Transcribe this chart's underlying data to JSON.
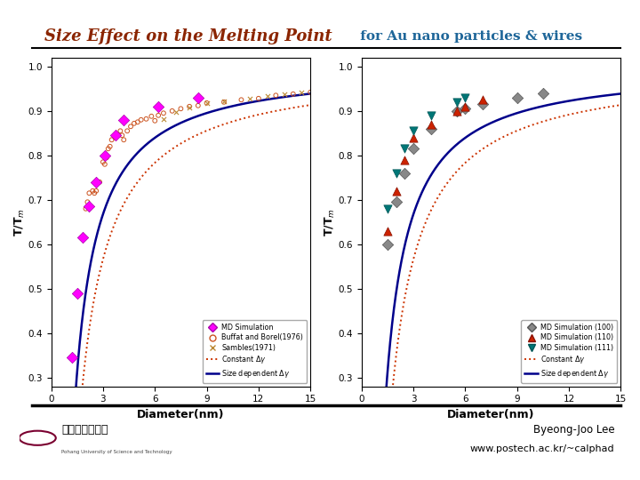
{
  "title_part1": "Size Effect on the Melting Point",
  "title_part2": " for Au nano particles & wires",
  "title_color1": "#8B2500",
  "title_color2": "#1E6699",
  "title_fontsize": 13,
  "title_fontsize2": 11,
  "bg_color": "#ffffff",
  "byeong_text": "Byeong-Joo Lee",
  "url_text": "www.postech.ac.kr/~calphad",
  "left_plot": {
    "xlabel": "Diameter(nm)",
    "ylabel": "T/T$_m$",
    "xlim": [
      0,
      15
    ],
    "ylim": [
      0.28,
      1.02
    ],
    "yticks": [
      0.3,
      0.4,
      0.5,
      0.6,
      0.7,
      0.8,
      0.9,
      1.0
    ],
    "xticks": [
      0,
      3,
      6,
      9,
      12,
      15
    ],
    "md_sim_x": [
      1.2,
      1.5,
      1.8,
      2.2,
      2.6,
      3.1,
      3.7,
      4.2,
      6.2,
      8.5
    ],
    "md_sim_y": [
      0.345,
      0.49,
      0.615,
      0.685,
      0.74,
      0.8,
      0.845,
      0.88,
      0.91,
      0.93
    ],
    "buffat_x": [
      2.0,
      2.1,
      2.2,
      2.4,
      2.5,
      2.6,
      2.8,
      3.0,
      3.1,
      3.2,
      3.3,
      3.4,
      3.5,
      3.7,
      3.8,
      4.0,
      4.1,
      4.2,
      4.4,
      4.6,
      4.8,
      5.0,
      5.2,
      5.5,
      5.8,
      6.0,
      6.2,
      6.5,
      7.0,
      7.5,
      8.0,
      8.5,
      9.0,
      10.0,
      11.0,
      12.0,
      13.0,
      14.0,
      15.0
    ],
    "buffat_y": [
      0.68,
      0.695,
      0.715,
      0.72,
      0.715,
      0.72,
      0.74,
      0.785,
      0.78,
      0.795,
      0.815,
      0.82,
      0.835,
      0.84,
      0.845,
      0.855,
      0.845,
      0.835,
      0.855,
      0.865,
      0.872,
      0.875,
      0.88,
      0.882,
      0.888,
      0.878,
      0.89,
      0.895,
      0.9,
      0.905,
      0.91,
      0.912,
      0.918,
      0.92,
      0.925,
      0.928,
      0.935,
      0.938,
      0.942
    ],
    "sambles_x": [
      6.5,
      7.2,
      8.0,
      9.0,
      10.0,
      11.5,
      12.5,
      13.5,
      14.5
    ],
    "sambles_y": [
      0.882,
      0.898,
      0.908,
      0.918,
      0.922,
      0.928,
      0.933,
      0.938,
      0.942
    ],
    "const_gamma_d0": 1.3,
    "size_dep_d0": 1.05,
    "curve_start": 0.7
  },
  "right_plot": {
    "xlabel": "Diameter(nm)",
    "ylabel": "T/T$_m$",
    "xlim": [
      0,
      15
    ],
    "ylim": [
      0.28,
      1.02
    ],
    "yticks": [
      0.3,
      0.4,
      0.5,
      0.6,
      0.7,
      0.8,
      0.9,
      1.0
    ],
    "xticks": [
      0,
      3,
      6,
      9,
      12,
      15
    ],
    "md_100_x": [
      1.5,
      2.0,
      2.5,
      3.0,
      4.0,
      5.5,
      6.0,
      7.0,
      9.0,
      10.5
    ],
    "md_100_y": [
      0.6,
      0.695,
      0.76,
      0.815,
      0.86,
      0.9,
      0.905,
      0.915,
      0.93,
      0.94
    ],
    "md_110_x": [
      1.5,
      2.0,
      2.5,
      3.0,
      4.0,
      5.5,
      6.0,
      7.0
    ],
    "md_110_y": [
      0.63,
      0.72,
      0.79,
      0.84,
      0.87,
      0.9,
      0.91,
      0.925
    ],
    "md_111_x": [
      1.5,
      2.0,
      2.5,
      3.0,
      4.0,
      5.5,
      6.0
    ],
    "md_111_y": [
      0.68,
      0.76,
      0.815,
      0.855,
      0.89,
      0.92,
      0.93
    ],
    "const_gamma_d0": 1.3,
    "size_dep_d0": 1.05,
    "curve_start": 0.7
  }
}
